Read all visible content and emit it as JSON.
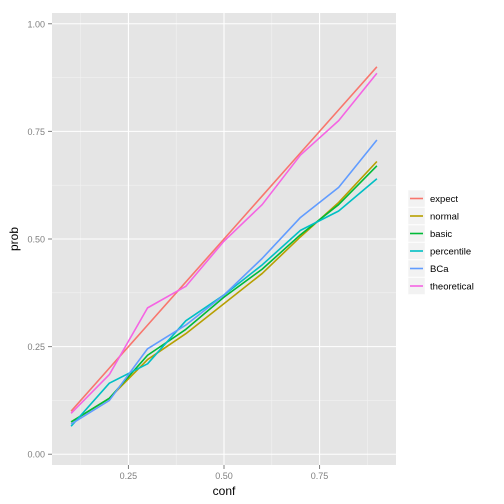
{
  "chart_data": {
    "type": "line",
    "xlabel": "conf",
    "ylabel": "prob",
    "xlim": [
      0.05,
      0.95
    ],
    "ylim": [
      -0.025,
      1.025
    ],
    "x_ticks": [
      0.25,
      0.5,
      0.75
    ],
    "x_tick_labels": [
      "0.25",
      "0.50",
      "0.75"
    ],
    "y_ticks": [
      0,
      0.25,
      0.5,
      0.75,
      1.0
    ],
    "y_tick_labels": [
      "0.00",
      "0.25",
      "0.50",
      "0.75",
      "1.00"
    ],
    "grid": true,
    "legend_position": "right",
    "x": [
      0.1,
      0.2,
      0.3,
      0.4,
      0.5,
      0.6,
      0.7,
      0.8,
      0.9
    ],
    "series": [
      {
        "name": "expect",
        "color": "#F8766D",
        "values": [
          0.1,
          0.2,
          0.3,
          0.4,
          0.5,
          0.6,
          0.7,
          0.8,
          0.9
        ]
      },
      {
        "name": "normal",
        "color": "#B79F00",
        "values": [
          0.075,
          0.13,
          0.22,
          0.28,
          0.35,
          0.42,
          0.505,
          0.585,
          0.68
        ]
      },
      {
        "name": "basic",
        "color": "#00BA38",
        "values": [
          0.075,
          0.13,
          0.23,
          0.29,
          0.365,
          0.43,
          0.51,
          0.58,
          0.67
        ]
      },
      {
        "name": "percentile",
        "color": "#00BFC4",
        "values": [
          0.065,
          0.165,
          0.21,
          0.31,
          0.37,
          0.44,
          0.52,
          0.565,
          0.64
        ]
      },
      {
        "name": "BCa",
        "color": "#619CFF",
        "values": [
          0.07,
          0.125,
          0.245,
          0.3,
          0.37,
          0.455,
          0.55,
          0.62,
          0.73
        ]
      },
      {
        "name": "theoretical",
        "color": "#F564E3",
        "values": [
          0.095,
          0.185,
          0.34,
          0.39,
          0.495,
          0.58,
          0.695,
          0.775,
          0.885
        ]
      }
    ]
  }
}
